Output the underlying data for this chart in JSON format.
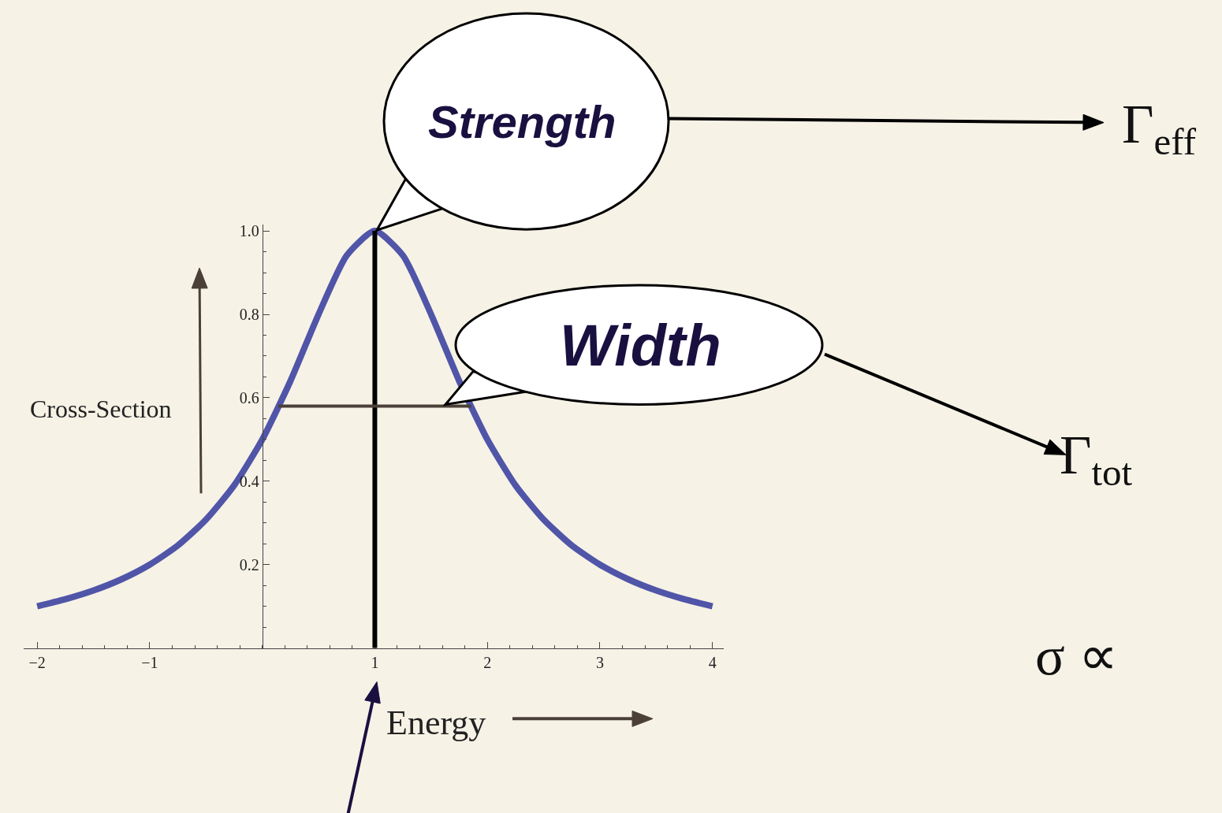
{
  "chart_data": {
    "type": "line",
    "xlabel": "Energy",
    "ylabel": "Cross-Section",
    "x": [
      -2,
      -1.75,
      -1.5,
      -1.25,
      -1,
      -0.75,
      -0.5,
      -0.25,
      0,
      0.25,
      0.5,
      0.75,
      1,
      1.25,
      1.5,
      1.75,
      2,
      2.25,
      2.5,
      2.75,
      3,
      3.25,
      3.5,
      3.75,
      4
    ],
    "values": [
      0.1,
      0.117,
      0.138,
      0.165,
      0.2,
      0.246,
      0.308,
      0.39,
      0.5,
      0.64,
      0.8,
      0.941,
      1.0,
      0.941,
      0.8,
      0.64,
      0.5,
      0.39,
      0.308,
      0.246,
      0.2,
      0.165,
      0.138,
      0.117,
      0.1
    ],
    "color": "#5055a8",
    "line_style": "solid",
    "xlim": [
      -2.12,
      4.1
    ],
    "xticks": [
      {
        "value": -2,
        "label": "−2"
      },
      {
        "value": -1,
        "label": "−1"
      },
      1,
      2,
      3,
      4
    ],
    "ylim": [
      0,
      1.015
    ],
    "yticks": [
      0.2,
      0.4,
      0.6,
      0.8,
      {
        "value": 1,
        "label": "1.0"
      }
    ],
    "ref_lines": [
      {
        "axis": "x",
        "value": 1,
        "color": "#000000"
      },
      {
        "axis": "y",
        "value": 0.58,
        "color": "#4a4038"
      }
    ],
    "annotations": [
      "Strength",
      "Width",
      "Γ$_{eff}$",
      "Γ$_{tot}$",
      "σ ∝"
    ],
    "grid": false
  }
}
